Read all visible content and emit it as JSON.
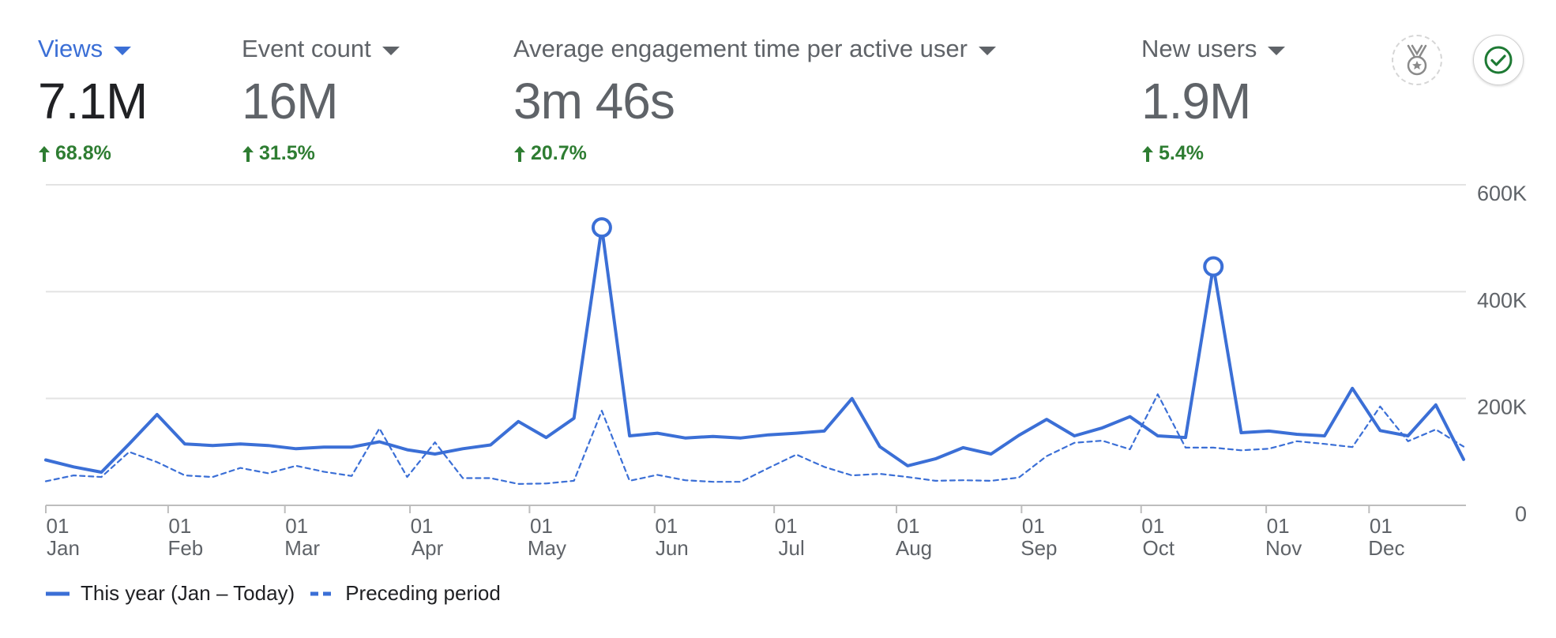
{
  "colors": {
    "accent": "#3b6fd6",
    "positive": "#2e7d32",
    "muted": "#5f6368",
    "text": "#202124",
    "grid": "#e3e3e3"
  },
  "metrics": [
    {
      "label": "Views",
      "value": "7.1M",
      "change": "68.8%",
      "active": true
    },
    {
      "label": "Event count",
      "value": "16M",
      "change": "31.5%",
      "active": false
    },
    {
      "label": "Average engagement time per active user",
      "value": "3m 46s",
      "change": "20.7%",
      "active": false
    },
    {
      "label": "New users",
      "value": "1.9M",
      "change": "5.4%",
      "active": false
    }
  ],
  "icons": {
    "medal": "medal-icon",
    "check": "check-circle-icon",
    "change_arrow": "arrow-up-icon"
  },
  "chart_data": {
    "type": "line",
    "title": "",
    "xlabel": "",
    "ylabel": "",
    "ylim": [
      0,
      600000
    ],
    "y_ticks": [
      {
        "value": 600000,
        "label": "600K"
      },
      {
        "value": 400000,
        "label": "400K"
      },
      {
        "value": 200000,
        "label": "200K"
      },
      {
        "value": 0,
        "label": "0"
      }
    ],
    "y_axis_side": "right",
    "grid": true,
    "legend_position": "bottom-left",
    "x_ticks": [
      {
        "day": "01",
        "month": "Jan",
        "week": 0
      },
      {
        "day": "01",
        "month": "Feb",
        "week": 4.4
      },
      {
        "day": "01",
        "month": "Mar",
        "week": 8.6
      },
      {
        "day": "01",
        "month": "Apr",
        "week": 13.1
      },
      {
        "day": "01",
        "month": "May",
        "week": 17.4
      },
      {
        "day": "01",
        "month": "Jun",
        "week": 21.9
      },
      {
        "day": "01",
        "month": "Jul",
        "week": 26.2
      },
      {
        "day": "01",
        "month": "Aug",
        "week": 30.6
      },
      {
        "day": "01",
        "month": "Sep",
        "week": 35.1
      },
      {
        "day": "01",
        "month": "Oct",
        "week": 39.4
      },
      {
        "day": "01",
        "month": "Nov",
        "week": 43.9
      },
      {
        "day": "01",
        "month": "Dec",
        "week": 47.6
      }
    ],
    "series": [
      {
        "name": "This year (Jan – Today)",
        "style": "solid",
        "color": "#3b6fd6",
        "values": [
          85000,
          72000,
          62000,
          115000,
          170000,
          115000,
          112000,
          115000,
          112000,
          106000,
          109000,
          109000,
          119000,
          104000,
          96000,
          106000,
          113000,
          157000,
          127000,
          163000,
          520000,
          130000,
          135000,
          126000,
          129000,
          126000,
          132000,
          135000,
          139000,
          200000,
          110000,
          74000,
          87000,
          108000,
          96000,
          131000,
          161000,
          130000,
          145000,
          166000,
          130000,
          127000,
          447000,
          136000,
          139000,
          133000,
          130000,
          219000,
          140000,
          130000,
          188000,
          86000
        ],
        "markers": [
          {
            "index": 20,
            "value": 520000
          },
          {
            "index": 42,
            "value": 447000
          }
        ]
      },
      {
        "name": "Preceding period",
        "style": "dashed",
        "color": "#3b6fd6",
        "values": [
          45000,
          56000,
          53000,
          100000,
          81000,
          56000,
          53000,
          70000,
          60000,
          74000,
          63000,
          55000,
          144000,
          53000,
          118000,
          51000,
          51000,
          40000,
          41000,
          46000,
          177000,
          46000,
          57000,
          47000,
          44000,
          44000,
          70000,
          95000,
          72000,
          56000,
          59000,
          53000,
          46000,
          47000,
          46000,
          52000,
          92000,
          117000,
          121000,
          105000,
          208000,
          108000,
          108000,
          103000,
          106000,
          120000,
          115000,
          109000,
          185000,
          120000,
          142000,
          110000
        ]
      }
    ]
  }
}
